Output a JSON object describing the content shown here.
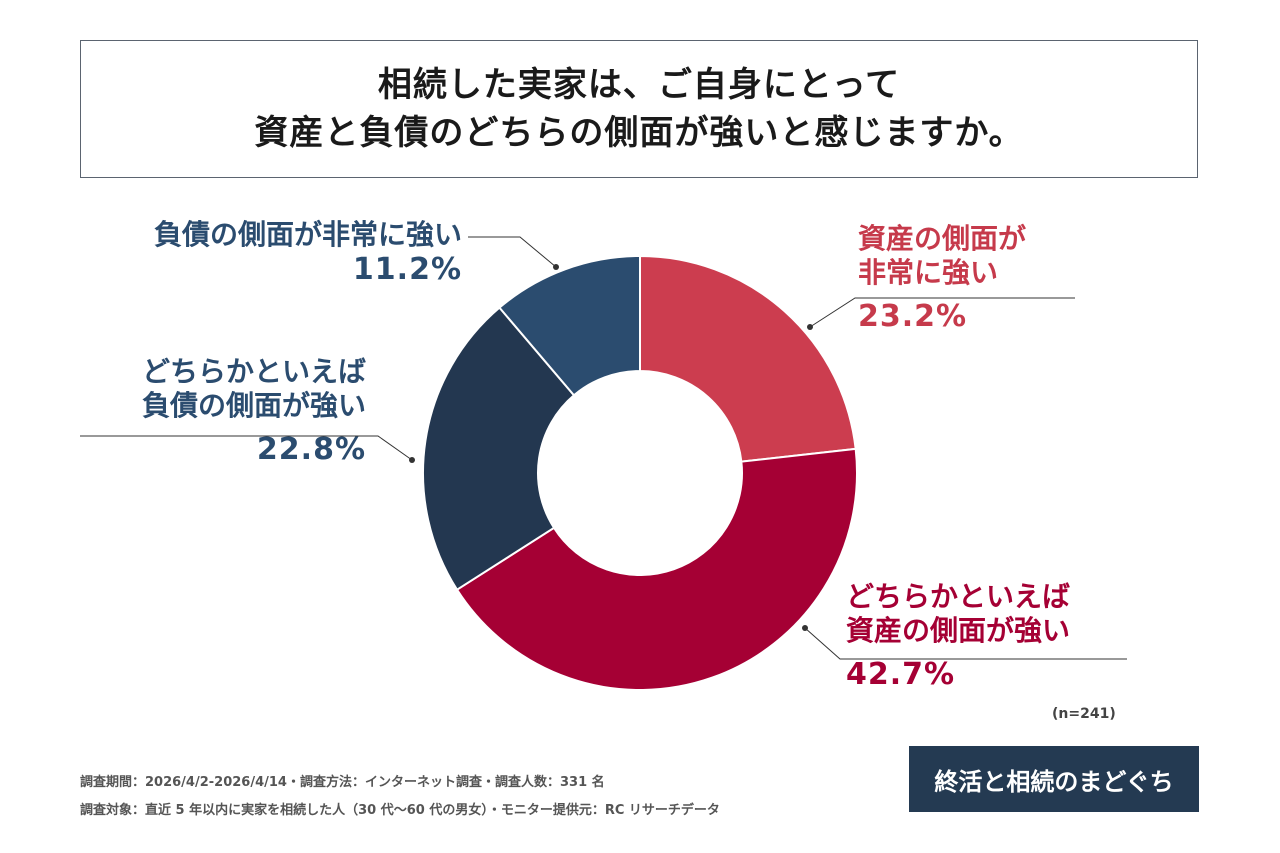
{
  "title": {
    "line1": "相続した実家は、ご自身にとって",
    "line2": "資産と負債のどちらの側面が強いと感じますか。"
  },
  "chart_data": {
    "type": "pie",
    "title": "相続した実家は、ご自身にとって資産と負債のどちらの側面が強いと感じますか。",
    "categories": [
      "資産の側面が非常に強い",
      "どちらかといえば資産の側面が強い",
      "どちらかといえば負債の側面が強い",
      "負債の側面が非常に強い"
    ],
    "values": [
      23.2,
      42.7,
      22.8,
      11.2
    ],
    "colors": [
      "#cc3d4f",
      "#a50034",
      "#233750",
      "#2b4c6f"
    ],
    "unit": "%",
    "donut": true
  },
  "labels": {
    "asset_strong": {
      "line1": "資産の側面が",
      "line2": "非常に強い",
      "pct": "23.2%"
    },
    "asset_some": {
      "line1": "どちらかといえば",
      "line2": "資産の側面が強い",
      "pct": "42.7%"
    },
    "debt_some": {
      "line1": "どちらかといえば",
      "line2": "負債の側面が強い",
      "pct": "22.8%"
    },
    "debt_strong": {
      "line1": "負債の側面が非常に強い",
      "pct": "11.2%"
    }
  },
  "n_label": "(n=241)",
  "footer": {
    "line1": "調査期間：2026/4/2-2026/4/14・調査方法：インターネット調査・調査人数：331 名",
    "line2": "調査対象：直近 5 年以内に実家を相続した人（30 代〜60 代の男女）・モニター提供元：RC リサーチデータ"
  },
  "logo": "終活と相続のまどぐち",
  "colors": {
    "asset_text": "#c63a4b",
    "asset_some_text": "#a50034",
    "debt_text": "#2b4c6f"
  }
}
